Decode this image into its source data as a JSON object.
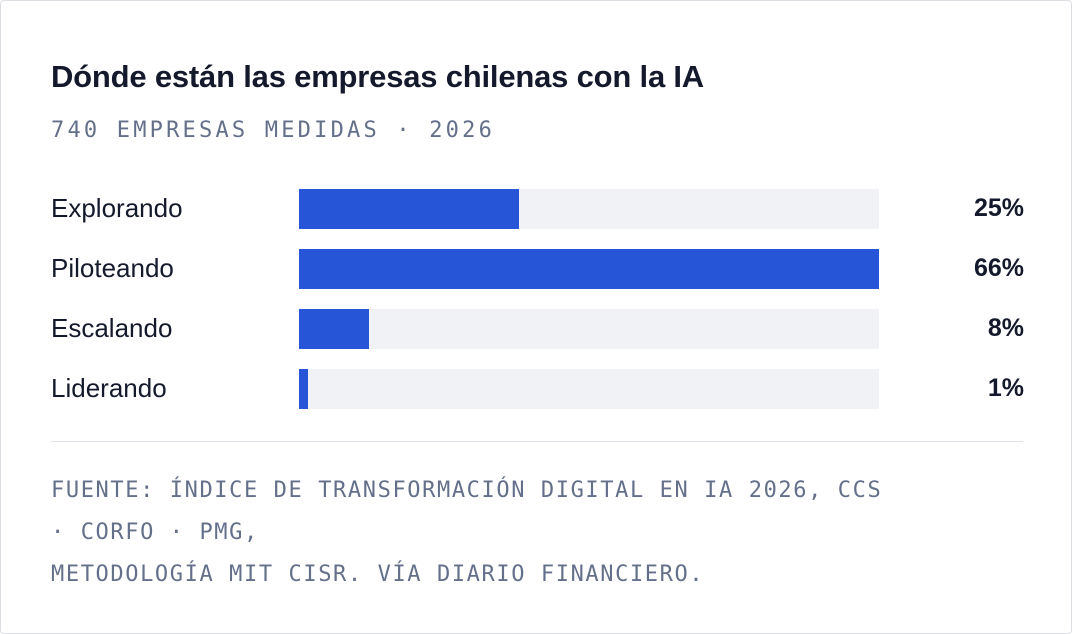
{
  "title": "Dónde están las empresas chilenas con la IA",
  "subtitle": "740 EMPRESAS MEDIDAS · 2026",
  "colors": {
    "bar_fill": "#2655d8",
    "bar_track": "#f1f2f6",
    "text_primary": "#141a2b",
    "text_muted": "#64708a"
  },
  "chart_data": {
    "type": "bar",
    "orientation": "horizontal",
    "title": "Dónde están las empresas chilenas con la IA",
    "subtitle": "740 EMPRESAS MEDIDAS · 2026",
    "categories": [
      "Explorando",
      "Piloteando",
      "Escalando",
      "Liderando"
    ],
    "values": [
      25,
      66,
      8,
      1
    ],
    "value_labels": [
      "25%",
      "66%",
      "8%",
      "1%"
    ],
    "unit": "%",
    "xlim": [
      0,
      66
    ],
    "grid": false,
    "legend": "none"
  },
  "source": {
    "lines": [
      "FUENTE: ÍNDICE DE TRANSFORMACIÓN DIGITAL EN IA 2026, CCS",
      "· CORFO · PMG,",
      "METODOLOGÍA MIT CISR. VÍA DIARIO FINANCIERO."
    ]
  }
}
